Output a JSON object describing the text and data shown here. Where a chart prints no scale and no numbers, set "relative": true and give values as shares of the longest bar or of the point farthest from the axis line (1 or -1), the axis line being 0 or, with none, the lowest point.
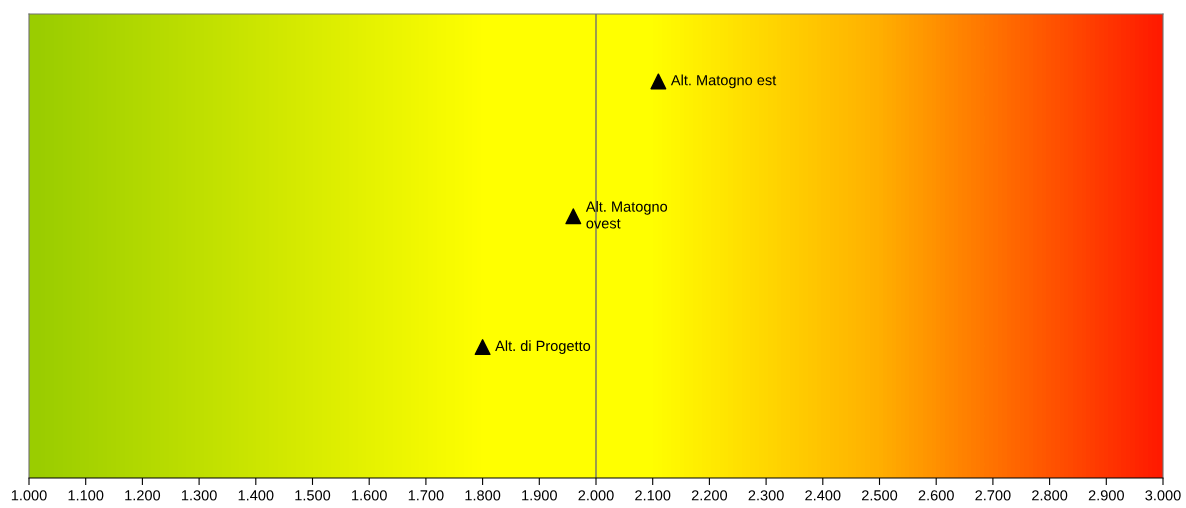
{
  "chart_data": {
    "type": "scatter",
    "relative": true,
    "marker": "triangle",
    "tick_labels": "x",
    "grid": false,
    "series": [
      {
        "color": "#000000",
        "x": [
          2.11,
          1.96,
          1.8
        ],
        "values": [
          1,
          0.66,
          0.33
        ]
      }
    ],
    "xlim": [
      1.0,
      3.0
    ],
    "xticks": [
      {
        "value": 1.0,
        "label": "1.000"
      },
      {
        "value": 1.1,
        "label": "1.100"
      },
      {
        "value": 1.2,
        "label": "1.200"
      },
      {
        "value": 1.3,
        "label": "1.300"
      },
      {
        "value": 1.4,
        "label": "1.400"
      },
      {
        "value": 1.5,
        "label": "1.500"
      },
      {
        "value": 1.6,
        "label": "1.600"
      },
      {
        "value": 1.7,
        "label": "1.700"
      },
      {
        "value": 1.8,
        "label": "1.800"
      },
      {
        "value": 1.9,
        "label": "1.900"
      },
      {
        "value": 2.0,
        "label": "2.000"
      },
      {
        "value": 2.1,
        "label": "2.100"
      },
      {
        "value": 2.2,
        "label": "2.200"
      },
      {
        "value": 2.3,
        "label": "2.300"
      },
      {
        "value": 2.4,
        "label": "2.400"
      },
      {
        "value": 2.5,
        "label": "2.500"
      },
      {
        "value": 2.6,
        "label": "2.600"
      },
      {
        "value": 2.7,
        "label": "2.700"
      },
      {
        "value": 2.8,
        "label": "2.800"
      },
      {
        "value": 2.9,
        "label": "2.900"
      },
      {
        "value": 3.0,
        "label": "3.000"
      }
    ],
    "ref_lines": [
      {
        "axis": "x",
        "value": 2.0,
        "color": "#707070"
      }
    ],
    "annotations": [
      {
        "text": "Alt. Matogno est",
        "x": 2.11,
        "y": 1
      },
      {
        "text": "Alt. Matogno\novest",
        "x": 1.96,
        "y": 0.66
      },
      {
        "text": "Alt. di Progetto",
        "x": 1.8,
        "y": 0.33
      }
    ]
  }
}
